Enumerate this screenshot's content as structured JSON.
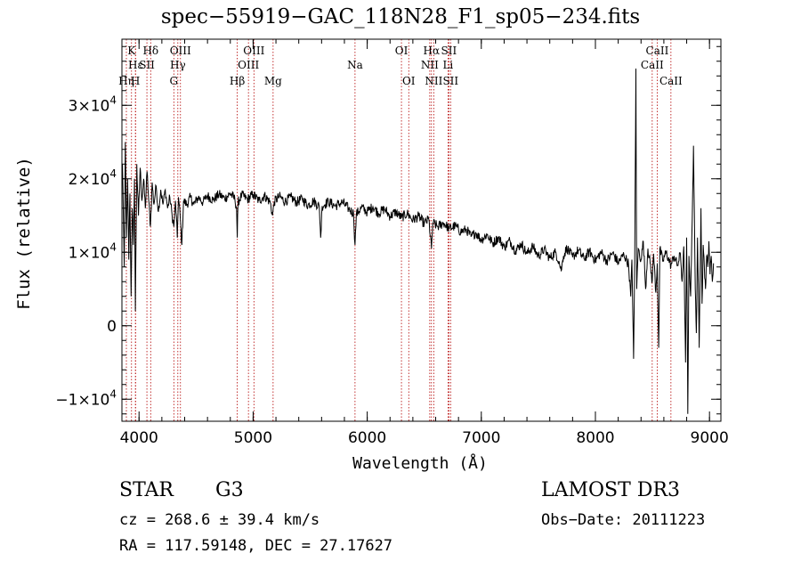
{
  "chart_data": {
    "type": "line",
    "title": "spec−55919−GAC_118N28_F1_sp05−234.fits",
    "xlabel": "Wavelength (Å)",
    "ylabel": "Flux (relative)",
    "xlim": [
      3850,
      9100
    ],
    "ylim": [
      -13000,
      39000
    ],
    "grid": false,
    "legend": "none",
    "x_ticks": [
      {
        "value": 4000,
        "label": "4000"
      },
      {
        "value": 5000,
        "label": "5000"
      },
      {
        "value": 6000,
        "label": "6000"
      },
      {
        "value": 7000,
        "label": "7000"
      },
      {
        "value": 8000,
        "label": "8000"
      },
      {
        "value": 9000,
        "label": "9000"
      }
    ],
    "x_minor_step": 200,
    "y_ticks": [
      {
        "value": -10000,
        "mantissa": "−1×10",
        "exp": "4"
      },
      {
        "value": 0,
        "mantissa": "0",
        "exp": ""
      },
      {
        "value": 10000,
        "mantissa": "1×10",
        "exp": "4"
      },
      {
        "value": 20000,
        "mantissa": "2×10",
        "exp": "4"
      },
      {
        "value": 30000,
        "mantissa": "3×10",
        "exp": "4"
      }
    ],
    "y_minor_step": 2000,
    "line_color": "#000000",
    "marker_color": "#b30000",
    "spectral_lines": [
      {
        "label": "K",
        "wave": 3934,
        "row": 0
      },
      {
        "label": "Hε",
        "wave": 3970,
        "row": 1
      },
      {
        "label": "Hη",
        "wave": 3889,
        "row": 2
      },
      {
        "label": "H",
        "wave": 3968,
        "row": 2
      },
      {
        "label": "SII",
        "wave": 4069,
        "row": 1
      },
      {
        "label": "Hδ",
        "wave": 4102,
        "row": 0
      },
      {
        "label": "OIII",
        "wave": 4363,
        "row": 0
      },
      {
        "label": "Hγ",
        "wave": 4340,
        "row": 1
      },
      {
        "label": "G",
        "wave": 4305,
        "row": 2
      },
      {
        "label": "Hβ",
        "wave": 4861,
        "row": 2
      },
      {
        "label": "OIII",
        "wave": 4959,
        "row": 1
      },
      {
        "label": "OIII",
        "wave": 5007,
        "row": 0
      },
      {
        "label": "Mg",
        "wave": 5175,
        "row": 2
      },
      {
        "label": "Na",
        "wave": 5893,
        "row": 1
      },
      {
        "label": "OI",
        "wave": 6300,
        "row": 0
      },
      {
        "label": "OI",
        "wave": 6364,
        "row": 2
      },
      {
        "label": "NII",
        "wave": 6548,
        "row": 1
      },
      {
        "label": "Hα",
        "wave": 6563,
        "row": 0
      },
      {
        "label": "NII",
        "wave": 6583,
        "row": 2
      },
      {
        "label": "SII",
        "wave": 6716,
        "row": 0
      },
      {
        "label": "Li",
        "wave": 6708,
        "row": 1
      },
      {
        "label": "SII",
        "wave": 6731,
        "row": 2
      },
      {
        "label": "CaII",
        "wave": 8498,
        "row": 1
      },
      {
        "label": "CaII",
        "wave": 8542,
        "row": 0
      },
      {
        "label": "CaII",
        "wave": 8662,
        "row": 2
      }
    ],
    "flux": [
      [
        3855,
        22000
      ],
      [
        3870,
        8000
      ],
      [
        3880,
        25000
      ],
      [
        3890,
        12000
      ],
      [
        3900,
        20000
      ],
      [
        3910,
        9000
      ],
      [
        3920,
        18000
      ],
      [
        3930,
        4000
      ],
      [
        3940,
        16000
      ],
      [
        3950,
        11000
      ],
      [
        3960,
        20000
      ],
      [
        3968,
        2000
      ],
      [
        3980,
        22000
      ],
      [
        3995,
        15000
      ],
      [
        4010,
        21500
      ],
      [
        4025,
        17000
      ],
      [
        4040,
        20000
      ],
      [
        4055,
        16000
      ],
      [
        4070,
        21000
      ],
      [
        4085,
        17000
      ],
      [
        4100,
        13500
      ],
      [
        4115,
        19500
      ],
      [
        4130,
        16500
      ],
      [
        4150,
        19000
      ],
      [
        4170,
        15500
      ],
      [
        4190,
        18500
      ],
      [
        4210,
        16500
      ],
      [
        4230,
        18500
      ],
      [
        4250,
        16000
      ],
      [
        4270,
        17500
      ],
      [
        4290,
        15000
      ],
      [
        4305,
        13500
      ],
      [
        4320,
        17000
      ],
      [
        4335,
        12000
      ],
      [
        4345,
        17500
      ],
      [
        4360,
        15000
      ],
      [
        4375,
        11000
      ],
      [
        4390,
        17000
      ],
      [
        4420,
        16500
      ],
      [
        4450,
        17500
      ],
      [
        4480,
        16500
      ],
      [
        4520,
        17500
      ],
      [
        4560,
        16800
      ],
      [
        4600,
        17700
      ],
      [
        4650,
        17100
      ],
      [
        4700,
        17900
      ],
      [
        4750,
        17300
      ],
      [
        4800,
        18000
      ],
      [
        4840,
        17200
      ],
      [
        4855,
        16000
      ],
      [
        4861,
        12000
      ],
      [
        4868,
        16800
      ],
      [
        4900,
        17800
      ],
      [
        4950,
        17200
      ],
      [
        5000,
        17900
      ],
      [
        5050,
        17000
      ],
      [
        5100,
        17700
      ],
      [
        5150,
        16800
      ],
      [
        5170,
        15000
      ],
      [
        5185,
        16900
      ],
      [
        5230,
        17600
      ],
      [
        5280,
        16900
      ],
      [
        5330,
        17500
      ],
      [
        5380,
        16800
      ],
      [
        5430,
        17300
      ],
      [
        5480,
        16400
      ],
      [
        5530,
        17000
      ],
      [
        5580,
        16200
      ],
      [
        5592,
        12000
      ],
      [
        5605,
        16300
      ],
      [
        5660,
        16900
      ],
      [
        5720,
        16300
      ],
      [
        5780,
        16800
      ],
      [
        5840,
        15900
      ],
      [
        5880,
        15300
      ],
      [
        5893,
        11000
      ],
      [
        5905,
        15200
      ],
      [
        5950,
        16100
      ],
      [
        6000,
        15500
      ],
      [
        6050,
        16200
      ],
      [
        6100,
        15300
      ],
      [
        6150,
        15900
      ],
      [
        6200,
        14900
      ],
      [
        6250,
        15500
      ],
      [
        6300,
        14700
      ],
      [
        6350,
        15300
      ],
      [
        6400,
        14400
      ],
      [
        6450,
        14900
      ],
      [
        6500,
        13900
      ],
      [
        6540,
        14500
      ],
      [
        6563,
        10500
      ],
      [
        6575,
        14000
      ],
      [
        6620,
        13500
      ],
      [
        6670,
        14000
      ],
      [
        6720,
        13200
      ],
      [
        6770,
        13600
      ],
      [
        6820,
        12800
      ],
      [
        6870,
        13100
      ],
      [
        6910,
        12100
      ],
      [
        6950,
        12700
      ],
      [
        7000,
        11700
      ],
      [
        7050,
        12400
      ],
      [
        7100,
        11200
      ],
      [
        7150,
        12000
      ],
      [
        7200,
        10700
      ],
      [
        7250,
        11600
      ],
      [
        7300,
        10200
      ],
      [
        7350,
        11200
      ],
      [
        7400,
        9800
      ],
      [
        7450,
        10800
      ],
      [
        7500,
        9500
      ],
      [
        7550,
        10400
      ],
      [
        7600,
        9200
      ],
      [
        7650,
        10000
      ],
      [
        7680,
        8800
      ],
      [
        7700,
        7500
      ],
      [
        7720,
        9500
      ],
      [
        7750,
        10600
      ],
      [
        7800,
        9300
      ],
      [
        7850,
        10300
      ],
      [
        7900,
        9100
      ],
      [
        7950,
        10100
      ],
      [
        8000,
        8900
      ],
      [
        8050,
        10000
      ],
      [
        8100,
        8800
      ],
      [
        8150,
        9900
      ],
      [
        8200,
        8600
      ],
      [
        8250,
        9700
      ],
      [
        8290,
        8400
      ],
      [
        8310,
        4000
      ],
      [
        8320,
        9000
      ],
      [
        8335,
        -4500
      ],
      [
        8345,
        9500
      ],
      [
        8355,
        35000
      ],
      [
        8362,
        5000
      ],
      [
        8375,
        10500
      ],
      [
        8400,
        9000
      ],
      [
        8420,
        11500
      ],
      [
        8440,
        5000
      ],
      [
        8460,
        10500
      ],
      [
        8480,
        8500
      ],
      [
        8498,
        6000
      ],
      [
        8510,
        9800
      ],
      [
        8530,
        4500
      ],
      [
        8542,
        8500
      ],
      [
        8555,
        -3000
      ],
      [
        8565,
        10500
      ],
      [
        8590,
        8800
      ],
      [
        8620,
        10000
      ],
      [
        8662,
        8200
      ],
      [
        8690,
        9500
      ],
      [
        8720,
        8200
      ],
      [
        8745,
        9800
      ],
      [
        8760,
        6000
      ],
      [
        8775,
        10800
      ],
      [
        8790,
        -5000
      ],
      [
        8800,
        12000
      ],
      [
        8810,
        -12000
      ],
      [
        8820,
        9500
      ],
      [
        8835,
        4000
      ],
      [
        8845,
        12000
      ],
      [
        8860,
        24500
      ],
      [
        8875,
        5000
      ],
      [
        8885,
        -1000
      ],
      [
        8895,
        12000
      ],
      [
        8910,
        -3000
      ],
      [
        8925,
        16000
      ],
      [
        8935,
        3000
      ],
      [
        8945,
        11000
      ],
      [
        8955,
        8000
      ],
      [
        8965,
        5000
      ],
      [
        8975,
        9500
      ],
      [
        8985,
        8000
      ],
      [
        8995,
        11500
      ],
      [
        9005,
        7000
      ],
      [
        9015,
        9500
      ],
      [
        9025,
        6000
      ],
      [
        9035,
        8500
      ]
    ]
  },
  "labels": {
    "object_type": "STAR",
    "subclass": "G3",
    "cz": "cz = 268.6 ± 39.4 km/s",
    "radec": "RA = 117.59148, DEC =  27.17627",
    "survey": "LAMOST DR3",
    "obs_date": "Obs−Date: 20111223"
  }
}
